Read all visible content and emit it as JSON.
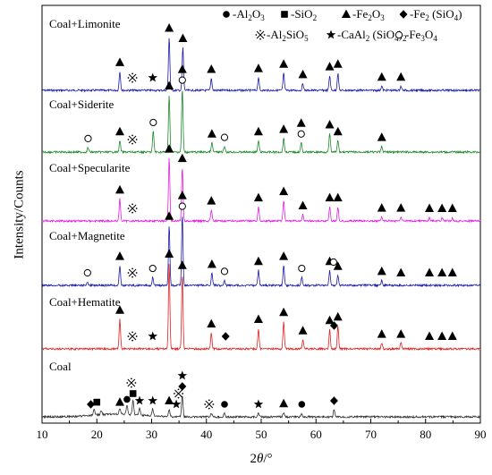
{
  "chart_data": {
    "type": "line",
    "title": "",
    "xlabel_parts": [
      "2",
      "θ",
      "/°"
    ],
    "ylabel": "Intensity/Counts",
    "xlim": [
      10,
      90
    ],
    "x_ticks": [
      10,
      20,
      30,
      40,
      50,
      60,
      70,
      80,
      90
    ],
    "y_ticks_shown": false,
    "legend": {
      "placement": "top-right",
      "entries": [
        {
          "marker": "filled-circle-icon",
          "label": [
            "-Al",
            "2",
            "O",
            "3",
            ""
          ]
        },
        {
          "marker": "filled-square-icon",
          "label": [
            "-SiO",
            "2",
            "",
            "",
            ""
          ]
        },
        {
          "marker": "filled-triangle-icon",
          "label": [
            "-Fe",
            "2",
            "O",
            "3",
            ""
          ]
        },
        {
          "marker": "filled-diamond-icon",
          "label": [
            "-Fe",
            "2",
            " (SiO",
            "4",
            ")"
          ]
        },
        {
          "marker": "reference-mark-icon",
          "label": [
            "-Al",
            "2",
            "SiO",
            "5",
            ""
          ]
        },
        {
          "marker": "filled-star-icon",
          "label": [
            "-CaAl",
            "2",
            " (SiO",
            "4",
            ")",
            "2"
          ]
        },
        {
          "marker": "open-circle-icon",
          "label": [
            "-Fe",
            "3",
            "O",
            "4",
            ""
          ]
        }
      ]
    },
    "series": [
      {
        "name": "Coal+Limonite",
        "color": "#1a1aa6",
        "peaks": [
          [
            24.2,
            0.22
          ],
          [
            33.2,
            0.62
          ],
          [
            35.7,
            0.5
          ],
          [
            40.9,
            0.14
          ],
          [
            49.5,
            0.15
          ],
          [
            54.1,
            0.2
          ],
          [
            57.6,
            0.08
          ],
          [
            62.5,
            0.17
          ],
          [
            64.0,
            0.2
          ],
          [
            72.0,
            0.05
          ],
          [
            75.5,
            0.05
          ]
        ],
        "markers": [
          {
            "type": "triangle",
            "x": 24.2
          },
          {
            "type": "refmark",
            "x": 26.5
          },
          {
            "type": "star",
            "x": 30.2
          },
          {
            "type": "triangle",
            "x": 33.2
          },
          {
            "type": "triangle",
            "x": 35.7
          },
          {
            "type": "triangle",
            "x": 40.9
          },
          {
            "type": "triangle",
            "x": 49.5
          },
          {
            "type": "triangle",
            "x": 54.1
          },
          {
            "type": "triangle",
            "x": 57.6
          },
          {
            "type": "triangle",
            "x": 62.5
          },
          {
            "type": "triangle",
            "x": 64.0
          },
          {
            "type": "triangle",
            "x": 72.0
          },
          {
            "type": "triangle",
            "x": 75.5
          }
        ]
      },
      {
        "name": "Coal+Siderite",
        "color": "#1c8a2a",
        "peaks": [
          [
            18.4,
            0.04
          ],
          [
            24.2,
            0.1
          ],
          [
            30.3,
            0.18
          ],
          [
            33.2,
            0.5
          ],
          [
            35.6,
            0.55
          ],
          [
            41.0,
            0.08
          ],
          [
            43.3,
            0.05
          ],
          [
            49.5,
            0.1
          ],
          [
            54.1,
            0.12
          ],
          [
            57.3,
            0.08
          ],
          [
            62.5,
            0.16
          ],
          [
            64.0,
            0.1
          ],
          [
            72.0,
            0.05
          ]
        ],
        "markers": [
          {
            "type": "circle",
            "x": 18.4
          },
          {
            "type": "triangle",
            "x": 24.2
          },
          {
            "type": "refmark",
            "x": 26.5
          },
          {
            "type": "circle",
            "x": 30.3
          },
          {
            "type": "triangle",
            "x": 33.2
          },
          {
            "type": "circle",
            "x": 35.6
          },
          {
            "type": "triangle",
            "x": 35.6
          },
          {
            "type": "triangle",
            "x": 41.0
          },
          {
            "type": "circle",
            "x": 43.3
          },
          {
            "type": "triangle",
            "x": 49.5
          },
          {
            "type": "triangle",
            "x": 54.1
          },
          {
            "type": "circle",
            "x": 57.3
          },
          {
            "type": "triangle",
            "x": 57.3
          },
          {
            "type": "triangle",
            "x": 62.5
          },
          {
            "type": "triangle",
            "x": 64.0
          },
          {
            "type": "triangle",
            "x": 72.0
          }
        ]
      },
      {
        "name": "Coal+Specularite",
        "color": "#e21fe2",
        "peaks": [
          [
            24.2,
            0.28
          ],
          [
            33.2,
            0.8
          ],
          [
            35.6,
            0.68
          ],
          [
            40.9,
            0.14
          ],
          [
            49.5,
            0.18
          ],
          [
            54.1,
            0.26
          ],
          [
            57.6,
            0.08
          ],
          [
            62.5,
            0.18
          ],
          [
            64.0,
            0.18
          ],
          [
            72.0,
            0.05
          ],
          [
            75.5,
            0.05
          ],
          [
            80.7,
            0.04
          ],
          [
            83.0,
            0.04
          ],
          [
            84.9,
            0.04
          ]
        ],
        "markers": [
          {
            "type": "triangle",
            "x": 24.2
          },
          {
            "type": "refmark",
            "x": 26.5
          },
          {
            "type": "triangle",
            "x": 33.2
          },
          {
            "type": "triangle",
            "x": 35.6
          },
          {
            "type": "triangle",
            "x": 40.9
          },
          {
            "type": "triangle",
            "x": 49.5
          },
          {
            "type": "triangle",
            "x": 54.1
          },
          {
            "type": "triangle",
            "x": 57.6
          },
          {
            "type": "triangle",
            "x": 62.5
          },
          {
            "type": "triangle",
            "x": 64.0
          },
          {
            "type": "triangle",
            "x": 72.0
          },
          {
            "type": "triangle",
            "x": 75.5
          },
          {
            "type": "triangle",
            "x": 80.7
          },
          {
            "type": "triangle",
            "x": 83.0
          },
          {
            "type": "triangle",
            "x": 84.9
          }
        ]
      },
      {
        "name": "Coal+Magnetite",
        "color": "#1a1aa6",
        "peaks": [
          [
            18.3,
            0.03
          ],
          [
            24.2,
            0.2
          ],
          [
            30.2,
            0.08
          ],
          [
            33.2,
            0.6
          ],
          [
            35.6,
            0.7
          ],
          [
            41.0,
            0.12
          ],
          [
            43.3,
            0.05
          ],
          [
            49.5,
            0.15
          ],
          [
            54.1,
            0.2
          ],
          [
            57.4,
            0.08
          ],
          [
            62.5,
            0.15
          ],
          [
            64.0,
            0.1
          ],
          [
            72.0,
            0.05
          ]
        ],
        "markers": [
          {
            "type": "circle",
            "x": 18.3
          },
          {
            "type": "triangle",
            "x": 24.2
          },
          {
            "type": "refmark",
            "x": 26.5
          },
          {
            "type": "circle",
            "x": 30.2
          },
          {
            "type": "triangle",
            "x": 33.2
          },
          {
            "type": "circle",
            "x": 35.6
          },
          {
            "type": "triangle",
            "x": 35.6
          },
          {
            "type": "triangle",
            "x": 41.0
          },
          {
            "type": "circle",
            "x": 43.3
          },
          {
            "type": "triangle",
            "x": 49.5
          },
          {
            "type": "triangle",
            "x": 54.1
          },
          {
            "type": "circle",
            "x": 57.4
          },
          {
            "type": "triangle",
            "x": 62.5
          },
          {
            "type": "circle",
            "x": 63.2
          },
          {
            "type": "triangle",
            "x": 64.0
          },
          {
            "type": "triangle",
            "x": 72.0
          },
          {
            "type": "triangle",
            "x": 75.5
          },
          {
            "type": "triangle",
            "x": 80.7
          },
          {
            "type": "triangle",
            "x": 83.0
          },
          {
            "type": "triangle",
            "x": 84.9
          }
        ]
      },
      {
        "name": "Coal+Hematite",
        "color": "#e22020",
        "peaks": [
          [
            24.2,
            0.26
          ],
          [
            33.2,
            0.75
          ],
          [
            35.6,
            0.65
          ],
          [
            40.9,
            0.14
          ],
          [
            49.5,
            0.18
          ],
          [
            54.1,
            0.24
          ],
          [
            57.6,
            0.08
          ],
          [
            62.5,
            0.17
          ],
          [
            64.0,
            0.2
          ],
          [
            72.0,
            0.05
          ],
          [
            75.5,
            0.05
          ]
        ],
        "markers": [
          {
            "type": "triangle",
            "x": 24.2
          },
          {
            "type": "refmark",
            "x": 26.5
          },
          {
            "type": "star",
            "x": 30.2
          },
          {
            "type": "triangle",
            "x": 33.2
          },
          {
            "type": "triangle",
            "x": 35.6
          },
          {
            "type": "triangle",
            "x": 40.9
          },
          {
            "type": "diamond",
            "x": 43.5
          },
          {
            "type": "triangle",
            "x": 49.5
          },
          {
            "type": "triangle",
            "x": 54.1
          },
          {
            "type": "triangle",
            "x": 57.6
          },
          {
            "type": "triangle",
            "x": 62.5
          },
          {
            "type": "diamond",
            "x": 63.3
          },
          {
            "type": "triangle",
            "x": 64.0
          },
          {
            "type": "triangle",
            "x": 72.0
          },
          {
            "type": "triangle",
            "x": 75.5
          },
          {
            "type": "triangle",
            "x": 80.7
          },
          {
            "type": "triangle",
            "x": 83.0
          },
          {
            "type": "triangle",
            "x": 84.9
          }
        ]
      },
      {
        "name": "Coal",
        "color": "#303030",
        "peaks": [
          [
            19.5,
            0.08
          ],
          [
            20.8,
            0.06
          ],
          [
            24.2,
            0.08
          ],
          [
            25.5,
            0.12
          ],
          [
            26.6,
            0.2
          ],
          [
            27.8,
            0.1
          ],
          [
            30.2,
            0.1
          ],
          [
            33.2,
            0.1
          ],
          [
            35.6,
            0.3
          ],
          [
            40.9,
            0.05
          ],
          [
            43.3,
            0.05
          ],
          [
            49.5,
            0.05
          ],
          [
            54.1,
            0.06
          ],
          [
            57.4,
            0.04
          ],
          [
            63.3,
            0.1
          ]
        ],
        "markers": [
          {
            "type": "diamond",
            "x": 18.9
          },
          {
            "type": "square",
            "x": 20.0
          },
          {
            "type": "triangle",
            "x": 24.2
          },
          {
            "type": "circle",
            "x": 25.5
          },
          {
            "type": "refmark",
            "x": 26.3
          },
          {
            "type": "square",
            "x": 26.6
          },
          {
            "type": "star",
            "x": 27.8
          },
          {
            "type": "star",
            "x": 30.2
          },
          {
            "type": "triangle",
            "x": 33.2
          },
          {
            "type": "star",
            "x": 34.5
          },
          {
            "type": "refmark",
            "x": 34.9
          },
          {
            "type": "diamond",
            "x": 35.6
          },
          {
            "type": "star",
            "x": 35.6
          },
          {
            "type": "refmark",
            "x": 40.5
          },
          {
            "type": "circle",
            "x": 43.3
          },
          {
            "type": "star",
            "x": 49.5
          },
          {
            "type": "triangle",
            "x": 54.1
          },
          {
            "type": "circle",
            "x": 57.4
          },
          {
            "type": "diamond",
            "x": 63.3
          }
        ]
      }
    ]
  }
}
